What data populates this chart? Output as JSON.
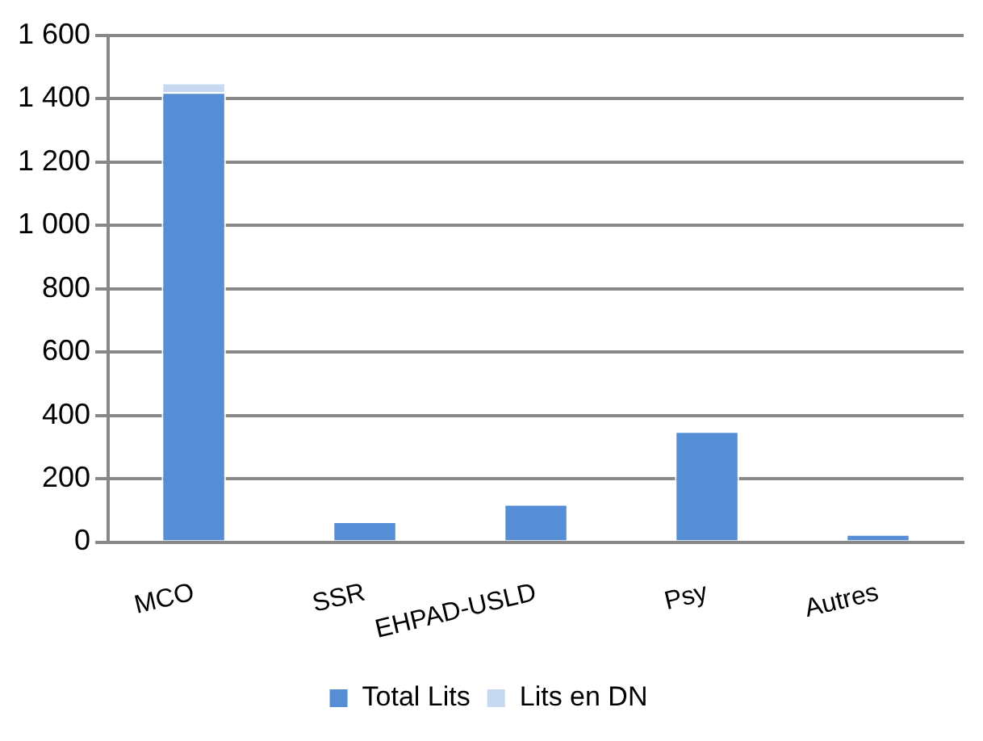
{
  "chart_data": {
    "type": "bar",
    "categories": [
      "MCO",
      "SSR",
      "EHPAD-USLD",
      "Psy",
      "Autres"
    ],
    "stacked": true,
    "series": [
      {
        "name": "Total Lits",
        "color": "#558ed5",
        "values": [
          1420,
          65,
          120,
          350,
          25
        ]
      },
      {
        "name": "Lits en DN",
        "color": "#c6d9f1",
        "values": [
          30,
          0,
          0,
          0,
          0
        ]
      }
    ],
    "ylim": [
      0,
      1600
    ],
    "yticks": [
      {
        "value": 0,
        "label": "0"
      },
      {
        "value": 200,
        "label": "200"
      },
      {
        "value": 400,
        "label": "400"
      },
      {
        "value": 600,
        "label": "600"
      },
      {
        "value": 800,
        "label": "800"
      },
      {
        "value": 1000,
        "label": "1 000"
      },
      {
        "value": 1200,
        "label": "1 200"
      },
      {
        "value": 1400,
        "label": "1 400"
      },
      {
        "value": 1600,
        "label": "1 600"
      }
    ],
    "grid": "y",
    "legend": "bottom"
  }
}
